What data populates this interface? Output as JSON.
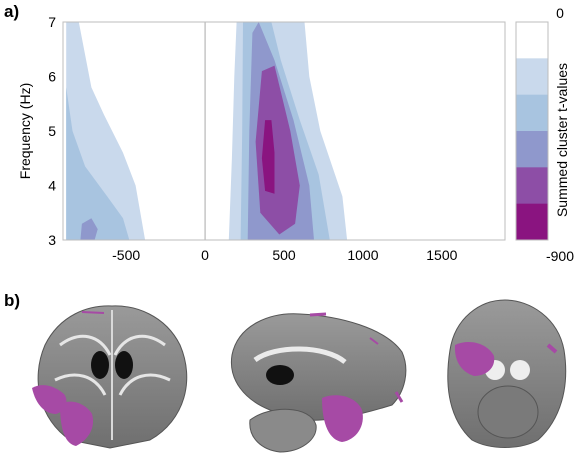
{
  "panels": {
    "a": "a)",
    "b": "b)"
  },
  "chart_data": {
    "type": "heatmap",
    "xlabel": "",
    "ylabel": "Frequency (Hz)",
    "xlim": [
      -900,
      1900
    ],
    "ylim": [
      3,
      7
    ],
    "xticks": [
      -500,
      0,
      500,
      1000,
      1500
    ],
    "yticks": [
      3,
      4,
      5,
      6,
      7
    ],
    "marker_line_x": 0,
    "colorbar": {
      "label": "Summed cluster t-values",
      "max_label": "0",
      "min_label": "-900",
      "levels": [
        "#ffffff",
        "#c9d9ec",
        "#a8c4e0",
        "#8f98cc",
        "#8d4ea6",
        "#8a1480"
      ]
    },
    "clusters": [
      {
        "name": "early",
        "contours": [
          {
            "level": 1,
            "points": [
              [
                -880,
                7
              ],
              [
                -800,
                7
              ],
              [
                -760,
                6.4
              ],
              [
                -720,
                5.8
              ],
              [
                -640,
                5.3
              ],
              [
                -520,
                4.6
              ],
              [
                -440,
                4.0
              ],
              [
                -380,
                3.0
              ],
              [
                -880,
                3.0
              ]
            ]
          },
          {
            "level": 2,
            "points": [
              [
                -880,
                5.8
              ],
              [
                -840,
                5.0
              ],
              [
                -760,
                4.35
              ],
              [
                -620,
                3.8
              ],
              [
                -520,
                3.4
              ],
              [
                -480,
                3.0
              ],
              [
                -880,
                3.0
              ]
            ]
          },
          {
            "level": 3,
            "points": [
              [
                -780,
                3.3
              ],
              [
                -720,
                3.4
              ],
              [
                -680,
                3.2
              ],
              [
                -700,
                3.0
              ],
              [
                -790,
                3.0
              ]
            ]
          }
        ]
      },
      {
        "name": "late",
        "contours": [
          {
            "level": 1,
            "points": [
              [
                200,
                7
              ],
              [
                630,
                7
              ],
              [
                660,
                6.0
              ],
              [
                730,
                5.0
              ],
              [
                870,
                3.8
              ],
              [
                900,
                3.0
              ],
              [
                150,
                3.0
              ],
              [
                170,
                4.5
              ],
              [
                185,
                6.0
              ]
            ]
          },
          {
            "level": 2,
            "points": [
              [
                240,
                7
              ],
              [
                420,
                7
              ],
              [
                480,
                6.3
              ],
              [
                600,
                5.2
              ],
              [
                720,
                4.2
              ],
              [
                790,
                3.0
              ],
              [
                225,
                3.0
              ],
              [
                235,
                5.0
              ]
            ]
          },
          {
            "level": 3,
            "points": [
              [
                300,
                6.8
              ],
              [
                340,
                7
              ],
              [
                440,
                6.3
              ],
              [
                560,
                5.2
              ],
              [
                660,
                4.0
              ],
              [
                690,
                3.0
              ],
              [
                270,
                3.0
              ],
              [
                280,
                5.0
              ]
            ]
          },
          {
            "level": 4,
            "points": [
              [
                360,
                6.1
              ],
              [
                440,
                6.2
              ],
              [
                540,
                5.0
              ],
              [
                600,
                4.0
              ],
              [
                570,
                3.3
              ],
              [
                470,
                3.1
              ],
              [
                350,
                3.5
              ],
              [
                320,
                4.8
              ]
            ]
          },
          {
            "level": 5,
            "points": [
              [
                380,
                5.2
              ],
              [
                420,
                5.2
              ],
              [
                440,
                4.6
              ],
              [
                440,
                3.85
              ],
              [
                380,
                3.9
              ],
              [
                360,
                4.5
              ]
            ]
          }
        ]
      }
    ]
  },
  "brain_views": [
    {
      "view": "coronal"
    },
    {
      "view": "sagittal"
    },
    {
      "view": "axial"
    }
  ]
}
